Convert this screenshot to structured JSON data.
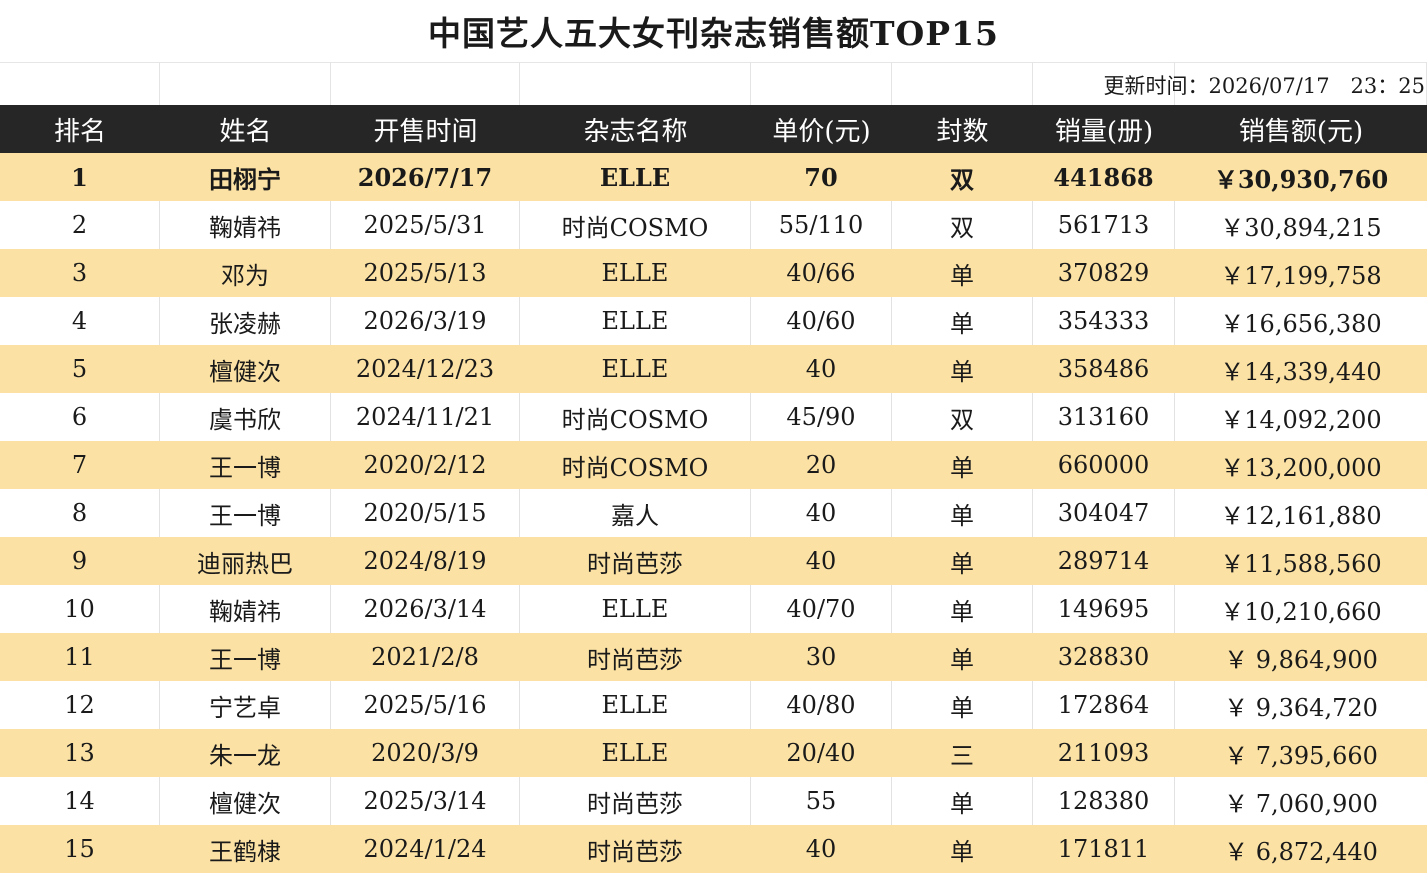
{
  "title": "中国艺人五大女刊杂志销售额TOP15",
  "updated": "更新时间：2026/07/17　23：25",
  "headers": [
    "排名",
    "姓名",
    "开售时间",
    "杂志名称",
    "单价(元)",
    "封数",
    "销量(册)",
    "销售额(元)"
  ],
  "rows": [
    [
      "1",
      "田栩宁",
      "2026/7/17",
      "ELLE",
      "70",
      "双",
      "441868",
      "￥30,930,760"
    ],
    [
      "2",
      "鞠婧祎",
      "2025/5/31",
      "时尚COSMO",
      "55/110",
      "双",
      "561713",
      "￥30,894,215"
    ],
    [
      "3",
      "邓为",
      "2025/5/13",
      "ELLE",
      "40/66",
      "单",
      "370829",
      "￥17,199,758"
    ],
    [
      "4",
      "张凌赫",
      "2026/3/19",
      "ELLE",
      "40/60",
      "单",
      "354333",
      "￥16,656,380"
    ],
    [
      "5",
      "檀健次",
      "2024/12/23",
      "ELLE",
      "40",
      "单",
      "358486",
      "￥14,339,440"
    ],
    [
      "6",
      "虞书欣",
      "2024/11/21",
      "时尚COSMO",
      "45/90",
      "双",
      "313160",
      "￥14,092,200"
    ],
    [
      "7",
      "王一博",
      "2020/2/12",
      "时尚COSMO",
      "20",
      "单",
      "660000",
      "￥13,200,000"
    ],
    [
      "8",
      "王一博",
      "2020/5/15",
      "嘉人",
      "40",
      "单",
      "304047",
      "￥12,161,880"
    ],
    [
      "9",
      "迪丽热巴",
      "2024/8/19",
      "时尚芭莎",
      "40",
      "单",
      "289714",
      "￥11,588,560"
    ],
    [
      "10",
      "鞠婧祎",
      "2026/3/14",
      "ELLE",
      "40/70",
      "单",
      "149695",
      "￥10,210,660"
    ],
    [
      "11",
      "王一博",
      "2021/2/8",
      "时尚芭莎",
      "30",
      "单",
      "328830",
      "￥ 9,864,900"
    ],
    [
      "12",
      "宁艺卓",
      "2025/5/16",
      "ELLE",
      "40/80",
      "单",
      "172864",
      "￥ 9,364,720"
    ],
    [
      "13",
      "朱一龙",
      "2020/3/9",
      "ELLE",
      "20/40",
      "三",
      "211093",
      "￥ 7,395,660"
    ],
    [
      "14",
      "檀健次",
      "2025/3/14",
      "时尚芭莎",
      "55",
      "单",
      "128380",
      "￥ 7,060,900"
    ],
    [
      "15",
      "王鹤棣",
      "2024/1/24",
      "时尚芭莎",
      "40",
      "单",
      "171811",
      "￥ 6,872,440"
    ]
  ]
}
